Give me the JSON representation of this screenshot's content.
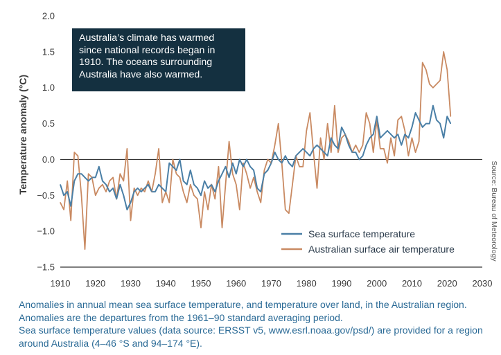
{
  "annotation": "Australia’s climate has warmed since national records began in 1910. The oceans surrounding Australia have also warmed.",
  "source_note": "Source: Bureau of Meteorology",
  "caption": {
    "line1": "Anomalies in annual mean sea surface temperature, and temperature over land, in the Australian region. Anomalies are the departures from the 1961–90 standard averaging period.",
    "line2": "Sea surface temperature values (data source: ERSST v5, www.esrl.noaa.gov/psd/) are provided for a region around Australia (4–46 °S and 94–174 °E)."
  },
  "colors": {
    "sst": "#4a7fa6",
    "air": "#c98a62",
    "axis": "#333333",
    "annotation_bg": "#143040",
    "caption": "#2a6a96"
  },
  "chart_data": {
    "type": "line",
    "title": "",
    "xlabel": "",
    "ylabel": "Temperature anomaly (°C)",
    "xlim": [
      1910,
      2030
    ],
    "ylim": [
      -1.5,
      2.0
    ],
    "xticks": [
      1910,
      1920,
      1930,
      1940,
      1950,
      1960,
      1970,
      1980,
      1990,
      2000,
      2010,
      2020,
      2030
    ],
    "yticks": [
      2.0,
      1.5,
      1.0,
      0.5,
      0.0,
      -0.5,
      -1.0,
      -1.5
    ],
    "ytick_labels": [
      "2.0",
      "1.5",
      "1.0",
      "0.5",
      "0.0",
      "−0.5",
      "−1.0",
      "−1.5"
    ],
    "legend_position": "lower-right",
    "grid": false,
    "x": [
      1910,
      1911,
      1912,
      1913,
      1914,
      1915,
      1916,
      1917,
      1918,
      1919,
      1920,
      1921,
      1922,
      1923,
      1924,
      1925,
      1926,
      1927,
      1928,
      1929,
      1930,
      1931,
      1932,
      1933,
      1934,
      1935,
      1936,
      1937,
      1938,
      1939,
      1940,
      1941,
      1942,
      1943,
      1944,
      1945,
      1946,
      1947,
      1948,
      1949,
      1950,
      1951,
      1952,
      1953,
      1954,
      1955,
      1956,
      1957,
      1958,
      1959,
      1960,
      1961,
      1962,
      1963,
      1964,
      1965,
      1966,
      1967,
      1968,
      1969,
      1970,
      1971,
      1972,
      1973,
      1974,
      1975,
      1976,
      1977,
      1978,
      1979,
      1980,
      1981,
      1982,
      1983,
      1984,
      1985,
      1986,
      1987,
      1988,
      1989,
      1990,
      1991,
      1992,
      1993,
      1994,
      1995,
      1996,
      1997,
      1998,
      1999,
      2000,
      2001,
      2002,
      2003,
      2004,
      2005,
      2006,
      2007,
      2008,
      2009,
      2010,
      2011,
      2012,
      2013,
      2014,
      2015,
      2016,
      2017,
      2018,
      2019,
      2020,
      2021
    ],
    "series": [
      {
        "name": "Sea surface temperature",
        "values": [
          -0.35,
          -0.5,
          -0.45,
          -0.65,
          -0.3,
          -0.2,
          -0.2,
          -0.25,
          -0.3,
          -0.25,
          -0.25,
          -0.1,
          -0.3,
          -0.35,
          -0.45,
          -0.4,
          -0.55,
          -0.35,
          -0.5,
          -0.7,
          -0.6,
          -0.45,
          -0.4,
          -0.45,
          -0.4,
          -0.35,
          -0.45,
          -0.45,
          -0.35,
          -0.4,
          -0.45,
          -0.05,
          -0.1,
          -0.15,
          0.0,
          -0.3,
          -0.35,
          -0.15,
          -0.35,
          -0.4,
          -0.5,
          -0.3,
          -0.4,
          -0.35,
          -0.45,
          -0.3,
          -0.2,
          -0.1,
          -0.25,
          -0.05,
          -0.2,
          0.0,
          -0.1,
          0.0,
          -0.1,
          -0.15,
          -0.4,
          -0.45,
          -0.2,
          -0.15,
          -0.05,
          0.1,
          0.0,
          -0.05,
          0.05,
          -0.05,
          -0.1,
          0.05,
          0.1,
          0.15,
          0.1,
          0.05,
          0.15,
          0.2,
          0.15,
          0.1,
          0.05,
          0.3,
          0.2,
          0.15,
          0.45,
          0.35,
          0.2,
          0.1,
          0.1,
          0.0,
          0.05,
          0.2,
          0.3,
          0.35,
          0.6,
          0.3,
          0.35,
          0.4,
          0.35,
          0.3,
          0.35,
          0.2,
          0.35,
          0.3,
          0.45,
          0.65,
          0.55,
          0.45,
          0.5,
          0.5,
          0.75,
          0.55,
          0.5,
          0.3,
          0.6,
          0.5
        ]
      },
      {
        "name": "Australian surface air temperature",
        "values": [
          -0.6,
          -0.7,
          -0.3,
          -0.85,
          0.1,
          0.05,
          -0.5,
          -1.25,
          -0.2,
          -0.25,
          -0.5,
          -0.4,
          -0.35,
          -0.45,
          -0.3,
          -0.25,
          -0.55,
          -0.2,
          -0.3,
          0.15,
          -0.85,
          -0.4,
          -0.5,
          -0.4,
          -0.45,
          -0.3,
          -0.45,
          -0.2,
          0.15,
          -0.6,
          -0.45,
          -0.6,
          0.0,
          -0.2,
          -0.25,
          -0.45,
          -0.6,
          -0.35,
          -0.5,
          -0.55,
          -0.95,
          -0.45,
          -0.7,
          -0.35,
          -0.55,
          -0.1,
          -0.95,
          -0.35,
          0.25,
          -0.2,
          -0.35,
          -0.7,
          -0.05,
          -0.2,
          -0.4,
          -0.25,
          -0.45,
          -0.6,
          -0.15,
          0.0,
          -0.05,
          0.2,
          0.5,
          -0.05,
          -0.7,
          -0.75,
          -0.35,
          0.05,
          -0.1,
          -0.1,
          0.4,
          0.65,
          0.1,
          -0.4,
          0.3,
          0.0,
          0.5,
          0.1,
          0.75,
          0.1,
          0.3,
          0.35,
          0.25,
          0.1,
          0.2,
          0.1,
          0.2,
          0.65,
          0.5,
          0.1,
          0.55,
          0.15,
          0.15,
          -0.05,
          0.3,
          0.05,
          0.55,
          0.6,
          0.4,
          0.05,
          0.3,
          0.1,
          0.25,
          1.35,
          1.25,
          1.05,
          1.0,
          1.05,
          1.1,
          1.5,
          1.25,
          0.6
        ]
      }
    ]
  }
}
